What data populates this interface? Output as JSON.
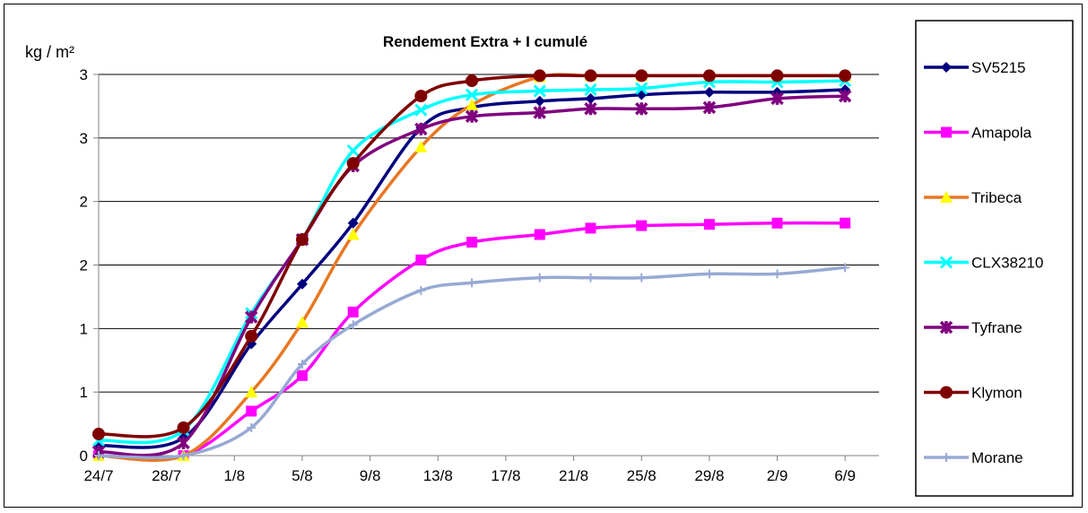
{
  "chart_data": {
    "type": "line",
    "title": "Rendement Extra + I cumulé",
    "ylabel": "kg / m²",
    "xlabel": "",
    "ylim": [
      0,
      3
    ],
    "y_tick_labels": [
      "0",
      "1",
      "1",
      "2",
      "2",
      "3",
      "3"
    ],
    "y_tick_values": [
      0,
      0.5,
      1,
      1.5,
      2,
      2.5,
      3
    ],
    "x_tick_labels": [
      "24/7",
      "28/7",
      "1/8",
      "5/8",
      "9/8",
      "13/8",
      "17/8",
      "21/8",
      "25/8",
      "29/8",
      "2/9",
      "6/9"
    ],
    "x_tick_days": [
      0,
      4,
      8,
      12,
      16,
      20,
      24,
      28,
      32,
      36,
      40,
      44
    ],
    "grid": "horizontal",
    "legend": "right",
    "series": [
      {
        "name": "SV5215",
        "color": "#00007F",
        "marker": "diamond",
        "x": [
          0,
          5,
          9,
          12,
          15,
          19,
          22,
          26,
          29,
          32,
          36,
          40,
          44
        ],
        "y": [
          0.08,
          0.14,
          0.88,
          1.35,
          1.83,
          2.58,
          2.74,
          2.79,
          2.81,
          2.84,
          2.86,
          2.86,
          2.88
        ]
      },
      {
        "name": "Amapola",
        "color": "#FF00FF",
        "marker": "square",
        "x": [
          0,
          5,
          9,
          12,
          15,
          19,
          22,
          26,
          29,
          32,
          36,
          40,
          44
        ],
        "y": [
          0.0,
          0.0,
          0.35,
          0.63,
          1.13,
          1.54,
          1.68,
          1.74,
          1.79,
          1.81,
          1.82,
          1.83,
          1.83
        ]
      },
      {
        "name": "Tribeca",
        "color": "#E87722",
        "marker": "triangle",
        "marker_color": "#FFFF00",
        "x": [
          0,
          5,
          9,
          12,
          15,
          19,
          22,
          26,
          29,
          32,
          36,
          40,
          44
        ],
        "y": [
          0.0,
          0.0,
          0.5,
          1.05,
          1.74,
          2.43,
          2.76,
          2.98,
          2.99,
          2.99,
          2.99,
          2.99,
          2.99
        ]
      },
      {
        "name": "CLX38210",
        "color": "#00FFFF",
        "marker": "x",
        "x": [
          0,
          5,
          9,
          12,
          15,
          19,
          22,
          26,
          29,
          32,
          36,
          40,
          44
        ],
        "y": [
          0.12,
          0.2,
          1.12,
          1.7,
          2.4,
          2.72,
          2.84,
          2.87,
          2.88,
          2.89,
          2.94,
          2.94,
          2.95
        ]
      },
      {
        "name": "Tyfrane",
        "color": "#7F007F",
        "marker": "star",
        "x": [
          0,
          5,
          9,
          12,
          15,
          19,
          22,
          26,
          29,
          32,
          36,
          40,
          44
        ],
        "y": [
          0.03,
          0.1,
          1.09,
          1.7,
          2.28,
          2.57,
          2.67,
          2.7,
          2.73,
          2.73,
          2.74,
          2.81,
          2.83
        ]
      },
      {
        "name": "Klymon",
        "color": "#7F0000",
        "marker": "circle",
        "x": [
          0,
          5,
          9,
          12,
          15,
          19,
          22,
          26,
          29,
          32,
          36,
          40,
          44
        ],
        "y": [
          0.17,
          0.22,
          0.94,
          1.7,
          2.3,
          2.83,
          2.95,
          2.99,
          2.99,
          2.99,
          2.99,
          2.99,
          2.99
        ]
      },
      {
        "name": "Morane",
        "color": "#97A9D4",
        "marker": "plus",
        "x": [
          0,
          5,
          9,
          12,
          15,
          19,
          22,
          26,
          29,
          32,
          36,
          40,
          44
        ],
        "y": [
          0.0,
          0.0,
          0.22,
          0.72,
          1.03,
          1.3,
          1.36,
          1.4,
          1.4,
          1.4,
          1.43,
          1.43,
          1.48
        ]
      }
    ]
  }
}
